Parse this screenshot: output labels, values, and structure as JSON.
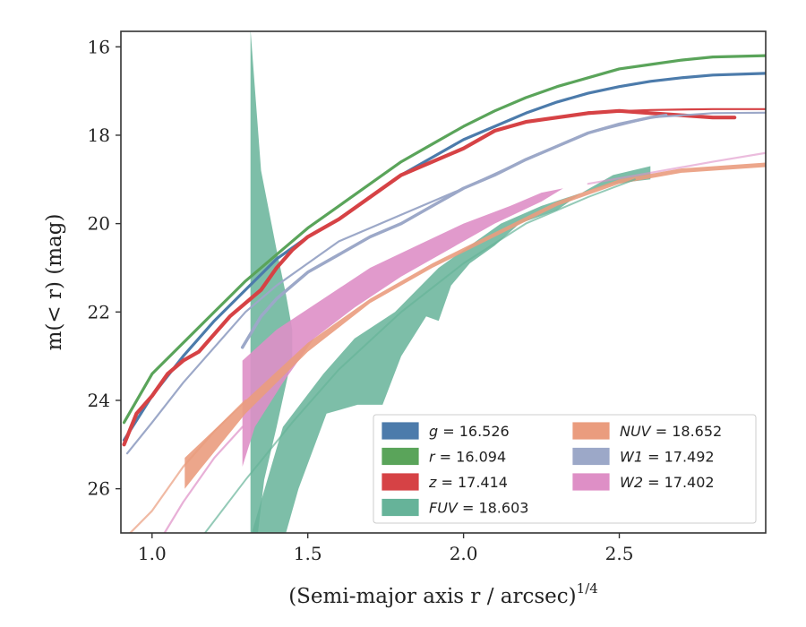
{
  "chart_data": {
    "type": "line",
    "xlabel_main": "(Semi-major axis r / arcsec)",
    "xlabel_exp": "1/4",
    "ylabel": "m(< r) (mag)",
    "xlim": [
      0.9,
      2.97
    ],
    "ylim": [
      27.0,
      15.65
    ],
    "y_inverted": true,
    "xticks": [
      1.0,
      1.5,
      2.0,
      2.5
    ],
    "yticks": [
      16,
      18,
      20,
      22,
      24,
      26
    ],
    "grid": false,
    "legend_position": "lower-right",
    "bands": [
      {
        "key": "FUV",
        "color": "#66b399",
        "opacity": 0.85,
        "upper": [
          [
            1.316,
            15.6
          ],
          [
            1.35,
            18.8
          ],
          [
            1.4,
            20.6
          ],
          [
            1.43,
            21.6
          ],
          [
            1.45,
            22.4
          ]
        ],
        "lower_note": "spike",
        "poly": [
          [
            1.316,
            27.0
          ],
          [
            1.316,
            15.6
          ],
          [
            1.35,
            18.8
          ],
          [
            1.4,
            20.6
          ],
          [
            1.43,
            21.6
          ],
          [
            1.45,
            22.4
          ],
          [
            1.45,
            23.0
          ],
          [
            1.4,
            24.6
          ],
          [
            1.36,
            25.8
          ],
          [
            1.34,
            27.0
          ]
        ]
      },
      {
        "key": "FUV_main",
        "color": "#66b399",
        "opacity": 0.85,
        "poly": [
          [
            1.32,
            27.0
          ],
          [
            1.42,
            24.6
          ],
          [
            1.55,
            23.4
          ],
          [
            1.65,
            22.6
          ],
          [
            1.78,
            22.0
          ],
          [
            1.92,
            21.0
          ],
          [
            2.02,
            20.5
          ],
          [
            2.12,
            20.0
          ],
          [
            2.25,
            19.6
          ],
          [
            2.38,
            19.3
          ],
          [
            2.48,
            18.9
          ],
          [
            2.6,
            18.7
          ],
          [
            2.6,
            19.0
          ],
          [
            2.48,
            19.1
          ],
          [
            2.38,
            19.3
          ],
          [
            2.3,
            19.7
          ],
          [
            2.18,
            20.0
          ],
          [
            2.1,
            20.5
          ],
          [
            2.02,
            20.9
          ],
          [
            1.96,
            21.4
          ],
          [
            1.92,
            22.2
          ],
          [
            1.88,
            22.1
          ],
          [
            1.8,
            23.0
          ],
          [
            1.74,
            24.1
          ],
          [
            1.66,
            24.1
          ],
          [
            1.56,
            24.3
          ],
          [
            1.47,
            26.0
          ],
          [
            1.43,
            27.0
          ]
        ]
      },
      {
        "key": "W2",
        "color": "#de8fc6",
        "opacity": 0.9,
        "poly": [
          [
            1.29,
            25.5
          ],
          [
            1.29,
            23.1
          ],
          [
            1.4,
            22.4
          ],
          [
            1.55,
            21.7
          ],
          [
            1.7,
            21.0
          ],
          [
            1.85,
            20.5
          ],
          [
            2.0,
            20.0
          ],
          [
            2.15,
            19.6
          ],
          [
            2.25,
            19.3
          ],
          [
            2.32,
            19.2
          ],
          [
            2.25,
            19.5
          ],
          [
            2.1,
            20.0
          ],
          [
            1.95,
            20.6
          ],
          [
            1.8,
            21.2
          ],
          [
            1.65,
            21.9
          ],
          [
            1.52,
            22.6
          ],
          [
            1.42,
            23.6
          ],
          [
            1.33,
            24.6
          ]
        ]
      },
      {
        "key": "NUV",
        "color": "#ea9c7e",
        "opacity": 0.9,
        "poly": [
          [
            1.105,
            26.0
          ],
          [
            1.105,
            25.3
          ],
          [
            1.3,
            24.0
          ],
          [
            1.5,
            22.7
          ],
          [
            1.7,
            21.7
          ],
          [
            1.9,
            20.9
          ],
          [
            2.1,
            20.2
          ],
          [
            2.3,
            19.5
          ],
          [
            2.5,
            19.0
          ],
          [
            2.7,
            18.75
          ],
          [
            2.97,
            18.62
          ],
          [
            2.97,
            18.72
          ],
          [
            2.7,
            18.85
          ],
          [
            2.5,
            19.1
          ],
          [
            2.3,
            19.6
          ],
          [
            2.1,
            20.3
          ],
          [
            1.9,
            21.0
          ],
          [
            1.7,
            21.8
          ],
          [
            1.5,
            22.9
          ],
          [
            1.3,
            24.3
          ],
          [
            1.15,
            25.6
          ]
        ]
      }
    ],
    "series": [
      {
        "key": "g",
        "color": "#4c7bab",
        "width": 3.2,
        "points": [
          [
            0.91,
            24.9
          ],
          [
            1.0,
            23.9
          ],
          [
            1.1,
            23.0
          ],
          [
            1.2,
            22.2
          ],
          [
            1.3,
            21.5
          ],
          [
            1.4,
            20.8
          ],
          [
            1.5,
            20.3
          ],
          [
            1.6,
            19.9
          ],
          [
            1.7,
            19.4
          ],
          [
            1.8,
            18.9
          ],
          [
            1.9,
            18.5
          ],
          [
            2.0,
            18.1
          ],
          [
            2.1,
            17.8
          ],
          [
            2.2,
            17.5
          ],
          [
            2.3,
            17.25
          ],
          [
            2.4,
            17.05
          ],
          [
            2.5,
            16.9
          ],
          [
            2.6,
            16.78
          ],
          [
            2.7,
            16.7
          ],
          [
            2.8,
            16.64
          ],
          [
            2.97,
            16.6
          ]
        ]
      },
      {
        "key": "r",
        "color": "#5aa45a",
        "width": 3.2,
        "points": [
          [
            0.91,
            24.5
          ],
          [
            1.0,
            23.4
          ],
          [
            1.1,
            22.7
          ],
          [
            1.2,
            22.0
          ],
          [
            1.3,
            21.3
          ],
          [
            1.4,
            20.7
          ],
          [
            1.5,
            20.1
          ],
          [
            1.6,
            19.6
          ],
          [
            1.7,
            19.1
          ],
          [
            1.8,
            18.6
          ],
          [
            1.9,
            18.2
          ],
          [
            2.0,
            17.8
          ],
          [
            2.1,
            17.45
          ],
          [
            2.2,
            17.15
          ],
          [
            2.3,
            16.9
          ],
          [
            2.4,
            16.7
          ],
          [
            2.5,
            16.5
          ],
          [
            2.6,
            16.4
          ],
          [
            2.7,
            16.3
          ],
          [
            2.8,
            16.23
          ],
          [
            2.97,
            16.2
          ]
        ]
      },
      {
        "key": "z",
        "color": "#d64245",
        "width": 4.2,
        "points": [
          [
            0.91,
            25.0
          ],
          [
            0.95,
            24.3
          ],
          [
            1.0,
            23.9
          ],
          [
            1.05,
            23.4
          ],
          [
            1.1,
            23.1
          ],
          [
            1.15,
            22.9
          ],
          [
            1.2,
            22.5
          ],
          [
            1.25,
            22.1
          ],
          [
            1.3,
            21.8
          ],
          [
            1.35,
            21.5
          ],
          [
            1.4,
            21.0
          ],
          [
            1.45,
            20.6
          ],
          [
            1.5,
            20.3
          ],
          [
            1.6,
            19.9
          ],
          [
            1.7,
            19.4
          ],
          [
            1.8,
            18.9
          ],
          [
            1.9,
            18.6
          ],
          [
            2.0,
            18.3
          ],
          [
            2.1,
            17.9
          ],
          [
            2.2,
            17.7
          ],
          [
            2.3,
            17.6
          ],
          [
            2.4,
            17.5
          ],
          [
            2.5,
            17.45
          ],
          [
            2.6,
            17.5
          ],
          [
            2.7,
            17.55
          ],
          [
            2.8,
            17.6
          ],
          [
            2.87,
            17.6
          ]
        ]
      },
      {
        "key": "z_model",
        "color": "#d64245",
        "width": 2.2,
        "points": [
          [
            2.4,
            17.48
          ],
          [
            2.6,
            17.43
          ],
          [
            2.8,
            17.41
          ],
          [
            2.97,
            17.41
          ]
        ]
      },
      {
        "key": "W1",
        "color": "#9ca8c8",
        "width": 3.5,
        "points": [
          [
            1.29,
            22.8
          ],
          [
            1.35,
            22.1
          ],
          [
            1.4,
            21.7
          ],
          [
            1.5,
            21.1
          ],
          [
            1.6,
            20.7
          ],
          [
            1.7,
            20.3
          ],
          [
            1.8,
            20.0
          ],
          [
            1.9,
            19.6
          ],
          [
            2.0,
            19.2
          ],
          [
            2.1,
            18.9
          ],
          [
            2.2,
            18.55
          ],
          [
            2.3,
            18.25
          ],
          [
            2.4,
            17.95
          ],
          [
            2.5,
            17.75
          ],
          [
            2.6,
            17.6
          ],
          [
            2.65,
            17.55
          ]
        ]
      },
      {
        "key": "W1_model",
        "color": "#9ca8c8",
        "width": 2.2,
        "points": [
          [
            0.92,
            25.2
          ],
          [
            1.0,
            24.5
          ],
          [
            1.1,
            23.6
          ],
          [
            1.2,
            22.8
          ],
          [
            1.3,
            22.0
          ],
          [
            1.4,
            21.4
          ],
          [
            1.5,
            20.9
          ],
          [
            1.6,
            20.4
          ],
          [
            1.8,
            19.8
          ],
          [
            2.0,
            19.2
          ],
          [
            2.2,
            18.55
          ],
          [
            2.4,
            17.95
          ],
          [
            2.6,
            17.6
          ],
          [
            2.8,
            17.5
          ],
          [
            2.97,
            17.49
          ]
        ]
      },
      {
        "key": "NUV_model",
        "color": "#ea9c7e",
        "width": 2.2,
        "opacity": 0.7,
        "points": [
          [
            0.93,
            27.0
          ],
          [
            1.0,
            26.5
          ],
          [
            1.1,
            25.5
          ],
          [
            1.2,
            24.7
          ],
          [
            1.3,
            24.0
          ]
        ]
      },
      {
        "key": "W2_model",
        "color": "#de8fc6",
        "width": 2.2,
        "opacity": 0.7,
        "points": [
          [
            1.04,
            27.0
          ],
          [
            1.1,
            26.3
          ],
          [
            1.2,
            25.3
          ],
          [
            1.29,
            24.6
          ]
        ]
      },
      {
        "key": "W2_model_tail",
        "color": "#de8fc6",
        "width": 2.2,
        "opacity": 0.6,
        "points": [
          [
            2.4,
            19.1
          ],
          [
            2.6,
            18.85
          ],
          [
            2.8,
            18.6
          ],
          [
            2.97,
            18.4
          ]
        ]
      },
      {
        "key": "FUV_model",
        "color": "#66b399",
        "width": 2.0,
        "opacity": 0.7,
        "points": [
          [
            1.17,
            27.0
          ],
          [
            1.3,
            25.8
          ],
          [
            1.45,
            24.5
          ],
          [
            1.6,
            23.3
          ],
          [
            1.8,
            22.0
          ],
          [
            2.0,
            20.9
          ],
          [
            2.2,
            20.0
          ],
          [
            2.4,
            19.4
          ],
          [
            2.55,
            19.0
          ]
        ]
      }
    ],
    "legend": [
      {
        "key": "g",
        "label": "g = 16.526",
        "color": "#4c7bab",
        "column": 0
      },
      {
        "key": "r",
        "label": "r = 16.094",
        "color": "#5aa45a",
        "column": 0
      },
      {
        "key": "z",
        "label": "z = 17.414",
        "color": "#d64245",
        "column": 0
      },
      {
        "key": "FUV",
        "label": "FUV = 18.603",
        "color": "#66b399",
        "column": 0
      },
      {
        "key": "NUV",
        "label": "NUV = 18.652",
        "color": "#ea9c7e",
        "column": 1
      },
      {
        "key": "W1",
        "label": "W1 = 17.492",
        "color": "#9ca8c8",
        "column": 1
      },
      {
        "key": "W2",
        "label": "W2 = 17.402",
        "color": "#de8fc6",
        "column": 1
      }
    ]
  }
}
